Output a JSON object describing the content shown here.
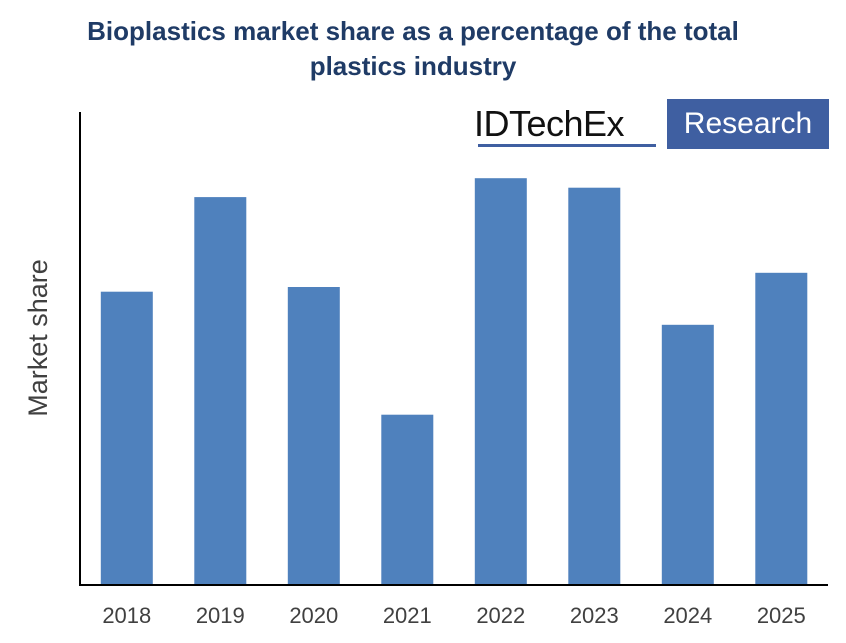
{
  "title_lines": [
    "Bioplastics market share as a percentage of the total",
    "plastics industry"
  ],
  "logo": {
    "left_text": "IDTechEx",
    "right_text": "Research"
  },
  "colors": {
    "bar": "#4f81bd",
    "title": "#1f3b66",
    "axis": "#000000",
    "tick": "#404040",
    "logo_accent": "#3f5fa1"
  },
  "chart_data": {
    "type": "bar",
    "title": "Bioplastics market share as a percentage of the total plastics industry",
    "xlabel": "",
    "ylabel": "Market share",
    "categories": [
      "2018",
      "2019",
      "2020",
      "2021",
      "2022",
      "2023",
      "2024",
      "2025"
    ],
    "values": [
      62,
      82,
      63,
      36,
      86,
      84,
      55,
      66
    ],
    "ylim": [
      0,
      100
    ],
    "grid": false,
    "legend": "none"
  }
}
